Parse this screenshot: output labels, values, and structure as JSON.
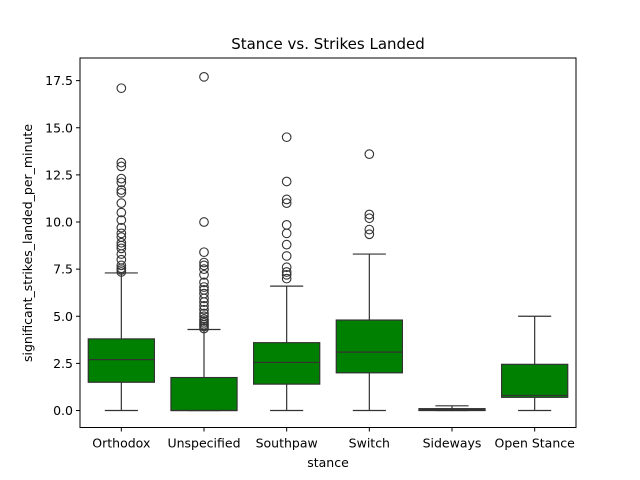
{
  "chart_data": {
    "type": "box",
    "title": "Stance vs. Strikes Landed",
    "xlabel": "stance",
    "ylabel": "significant_strikes_landed_per_minute",
    "ylim": [
      -0.9,
      18.7
    ],
    "yticks": [
      "0.0",
      "2.5",
      "5.0",
      "7.5",
      "10.0",
      "12.5",
      "15.0",
      "17.5"
    ],
    "ytick_values": [
      0,
      2.5,
      5,
      7.5,
      10,
      12.5,
      15,
      17.5
    ],
    "grid": false,
    "box_color": "#008000",
    "categories": [
      "Orthodox",
      "Unspecified",
      "Southpaw",
      "Switch",
      "Sideways",
      "Open Stance"
    ],
    "boxes": [
      {
        "category": "Orthodox",
        "whisker_low": 0.0,
        "q1": 1.5,
        "median": 2.7,
        "q3": 3.8,
        "whisker_high": 7.3,
        "outliers": [
          7.35,
          7.45,
          7.55,
          7.7,
          8.0,
          8.3,
          8.6,
          8.75,
          8.9,
          9.2,
          9.4,
          9.7,
          10.1,
          10.5,
          11.0,
          11.55,
          11.7,
          12.1,
          12.3,
          12.95,
          13.15,
          17.1
        ]
      },
      {
        "category": "Unspecified",
        "whisker_low": 0.0,
        "q1": 0.0,
        "median": 0.0,
        "q3": 1.75,
        "whisker_high": 4.3,
        "outliers": [
          4.35,
          4.45,
          4.55,
          4.65,
          4.75,
          4.85,
          5.0,
          5.15,
          5.35,
          5.55,
          5.75,
          5.95,
          6.2,
          6.4,
          6.55,
          6.8,
          7.2,
          7.5,
          7.7,
          7.85,
          8.4,
          10.0,
          17.7
        ]
      },
      {
        "category": "Southpaw",
        "whisker_low": 0.0,
        "q1": 1.4,
        "median": 2.55,
        "q3": 3.6,
        "whisker_high": 6.6,
        "outliers": [
          7.0,
          7.2,
          7.35,
          7.6,
          8.2,
          8.8,
          9.4,
          9.85,
          11.0,
          11.2,
          12.15,
          14.5
        ]
      },
      {
        "category": "Switch",
        "whisker_low": 0.0,
        "q1": 2.0,
        "median": 3.1,
        "q3": 4.8,
        "whisker_high": 8.3,
        "outliers": [
          9.35,
          9.6,
          10.2,
          10.4,
          13.6
        ]
      },
      {
        "category": "Sideways",
        "whisker_low": 0.0,
        "q1": 0.0,
        "median": 0.05,
        "q3": 0.1,
        "whisker_high": 0.25,
        "outliers": []
      },
      {
        "category": "Open Stance",
        "whisker_low": 0.0,
        "q1": 0.7,
        "median": 0.8,
        "q3": 2.45,
        "whisker_high": 5.0,
        "outliers": []
      }
    ]
  }
}
